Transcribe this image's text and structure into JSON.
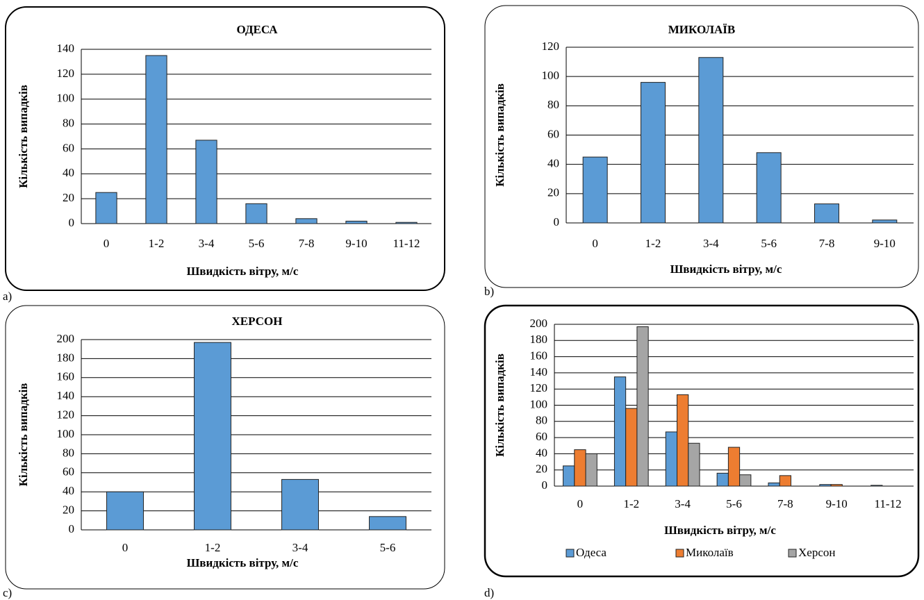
{
  "chart_data": [
    {
      "type": "bar",
      "label": "a)",
      "title": "ОДЕСА",
      "x_label": "Швидкість вітру, м/с",
      "y_label": "Кількість випадків",
      "categories": [
        "0",
        "1-2",
        "3-4",
        "5-6",
        "7-8",
        "9-10",
        "11-12"
      ],
      "values": [
        25,
        135,
        67,
        16,
        4,
        2,
        1
      ],
      "color": "#5b9bd5",
      "ylim": [
        0,
        140
      ],
      "yticks": [
        0,
        20,
        40,
        60,
        80,
        100,
        120,
        140
      ],
      "grid": true
    },
    {
      "type": "bar",
      "label": "b)",
      "title": "МИКОЛАЇВ",
      "x_label": "Швидкість вітру, м/с",
      "y_label": "Кількість випадків",
      "categories": [
        "0",
        "1-2",
        "3-4",
        "5-6",
        "7-8",
        "9-10"
      ],
      "values": [
        45,
        96,
        113,
        48,
        13,
        2
      ],
      "color": "#5b9bd5",
      "ylim": [
        0,
        120
      ],
      "yticks": [
        0,
        20,
        40,
        60,
        80,
        100,
        120
      ],
      "grid": true
    },
    {
      "type": "bar",
      "label": "c)",
      "title": "ХЕРСОН",
      "x_label": "Швидкість вітру, м/с",
      "y_label": "Кількість випадків",
      "categories": [
        "0",
        "1-2",
        "3-4",
        "5-6"
      ],
      "values": [
        40,
        197,
        53,
        14
      ],
      "color": "#5b9bd5",
      "ylim": [
        0,
        200
      ],
      "yticks": [
        0,
        20,
        40,
        60,
        80,
        100,
        120,
        140,
        160,
        180,
        200
      ],
      "grid": true
    },
    {
      "type": "bar",
      "label": "d)",
      "x_label": "Швидкість вітру,  м/с",
      "y_label": "Кількість випадків",
      "categories": [
        "0",
        "1-2",
        "3-4",
        "5-6",
        "7-8",
        "9-10",
        "11-12"
      ],
      "series": [
        {
          "name": "Одеса",
          "color": "#5b9bd5",
          "values": [
            25,
            135,
            67,
            16,
            4,
            2,
            1
          ]
        },
        {
          "name": "Миколаїв",
          "color": "#ed7d31",
          "values": [
            45,
            96,
            113,
            48,
            13,
            2,
            null
          ]
        },
        {
          "name": "Херсон",
          "color": "#a5a5a5",
          "values": [
            40,
            197,
            53,
            14,
            null,
            null,
            null
          ]
        }
      ],
      "ylim": [
        0,
        200
      ],
      "yticks": [
        0,
        20,
        40,
        60,
        80,
        100,
        120,
        140,
        160,
        180,
        200
      ],
      "grid": true,
      "legend": "bottom"
    }
  ]
}
